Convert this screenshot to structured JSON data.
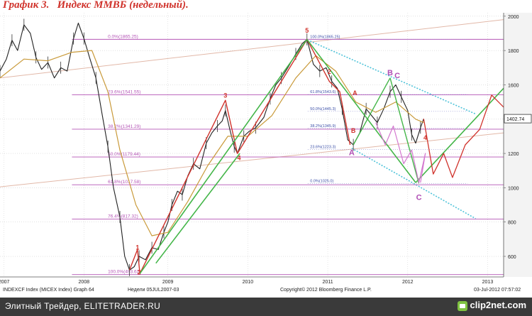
{
  "heading": {
    "label": "График 3.",
    "title": "Индекс ММВБ (недельный)."
  },
  "footer": {
    "caption": "Элитный Трейдер, ELITETRADER.RU",
    "logo": "clip2net.com"
  },
  "chart_data": {
    "type": "line",
    "title": "Индекс ММВБ (недельный).",
    "xlim": [
      2007.0,
      2013.3
    ],
    "ylim": [
      480,
      2020
    ],
    "yticks": [
      600,
      800,
      1000,
      1200,
      1400,
      1600,
      1800,
      2000
    ],
    "xticks": [
      {
        "label": "2007",
        "x": 2007.05
      },
      {
        "label": "2008",
        "x": 2008.05
      },
      {
        "label": "2009",
        "x": 2009.1
      },
      {
        "label": "2010",
        "x": 2010.1
      },
      {
        "label": "2011",
        "x": 2011.1
      },
      {
        "label": "2012",
        "x": 2012.1
      },
      {
        "label": "2013",
        "x": 2013.1
      }
    ],
    "last_price": {
      "value": 1402.74,
      "label": "1402.74"
    },
    "series": [
      {
        "name": "price",
        "color": "#222222",
        "points": [
          [
            2007.0,
            1680
          ],
          [
            2007.08,
            1750
          ],
          [
            2007.15,
            1860
          ],
          [
            2007.22,
            1800
          ],
          [
            2007.3,
            1950
          ],
          [
            2007.38,
            1900
          ],
          [
            2007.45,
            1760
          ],
          [
            2007.52,
            1690
          ],
          [
            2007.6,
            1730
          ],
          [
            2007.68,
            1640
          ],
          [
            2007.76,
            1700
          ],
          [
            2007.84,
            1680
          ],
          [
            2007.92,
            1870
          ],
          [
            2007.98,
            1960
          ],
          [
            2008.05,
            1870
          ],
          [
            2008.12,
            1760
          ],
          [
            2008.2,
            1640
          ],
          [
            2008.28,
            1420
          ],
          [
            2008.35,
            1240
          ],
          [
            2008.42,
            1000
          ],
          [
            2008.5,
            830
          ],
          [
            2008.56,
            600
          ],
          [
            2008.62,
            520
          ],
          [
            2008.68,
            540
          ],
          [
            2008.74,
            600
          ],
          [
            2008.82,
            580
          ],
          [
            2008.9,
            650
          ],
          [
            2008.98,
            640
          ],
          [
            2009.05,
            740
          ],
          [
            2009.1,
            800
          ],
          [
            2009.15,
            900
          ],
          [
            2009.22,
            980
          ],
          [
            2009.28,
            960
          ],
          [
            2009.35,
            1070
          ],
          [
            2009.42,
            1140
          ],
          [
            2009.5,
            1110
          ],
          [
            2009.58,
            1260
          ],
          [
            2009.65,
            1320
          ],
          [
            2009.72,
            1360
          ],
          [
            2009.78,
            1390
          ],
          [
            2009.82,
            1450
          ],
          [
            2009.88,
            1330
          ],
          [
            2009.93,
            1240
          ],
          [
            2009.97,
            1200
          ],
          [
            2010.05,
            1300
          ],
          [
            2010.12,
            1330
          ],
          [
            2010.2,
            1350
          ],
          [
            2010.3,
            1410
          ],
          [
            2010.38,
            1520
          ],
          [
            2010.45,
            1600
          ],
          [
            2010.52,
            1640
          ],
          [
            2010.6,
            1700
          ],
          [
            2010.7,
            1780
          ],
          [
            2010.78,
            1840
          ],
          [
            2010.84,
            1865
          ],
          [
            2010.92,
            1720
          ],
          [
            2011.0,
            1680
          ],
          [
            2011.08,
            1700
          ],
          [
            2011.15,
            1620
          ],
          [
            2011.22,
            1580
          ],
          [
            2011.28,
            1460
          ],
          [
            2011.35,
            1280
          ],
          [
            2011.42,
            1250
          ],
          [
            2011.5,
            1320
          ],
          [
            2011.58,
            1460
          ],
          [
            2011.65,
            1420
          ],
          [
            2011.72,
            1380
          ],
          [
            2011.8,
            1460
          ],
          [
            2011.88,
            1560
          ],
          [
            2011.95,
            1600
          ],
          [
            2012.02,
            1530
          ],
          [
            2012.1,
            1450
          ],
          [
            2012.15,
            1310
          ],
          [
            2012.2,
            1260
          ],
          [
            2012.26,
            1350
          ],
          [
            2012.3,
            1402
          ]
        ]
      },
      {
        "name": "moving-average",
        "color": "#c99a3a",
        "points": [
          [
            2007.0,
            1640
          ],
          [
            2007.3,
            1750
          ],
          [
            2007.6,
            1740
          ],
          [
            2007.9,
            1790
          ],
          [
            2008.15,
            1800
          ],
          [
            2008.35,
            1560
          ],
          [
            2008.5,
            1220
          ],
          [
            2008.7,
            900
          ],
          [
            2008.9,
            720
          ],
          [
            2009.1,
            740
          ],
          [
            2009.35,
            920
          ],
          [
            2009.6,
            1130
          ],
          [
            2009.85,
            1300
          ],
          [
            2010.1,
            1300
          ],
          [
            2010.4,
            1420
          ],
          [
            2010.7,
            1640
          ],
          [
            2010.95,
            1770
          ],
          [
            2011.2,
            1680
          ],
          [
            2011.45,
            1500
          ],
          [
            2011.7,
            1440
          ],
          [
            2011.95,
            1500
          ],
          [
            2012.2,
            1400
          ],
          [
            2012.3,
            1380
          ]
        ]
      }
    ],
    "fibonacci_levels": [
      {
        "label": "0.0%(1865.25)",
        "y": 1865.25
      },
      {
        "label": "23.6%(1541.55)",
        "y": 1541.55
      },
      {
        "label": "38.2%(1341.29)",
        "y": 1341.29
      },
      {
        "label": "50.0%(1179.44)",
        "y": 1179.44
      },
      {
        "label": "61.8%(1017.58)",
        "y": 1017.58
      },
      {
        "label": "76.4%(817.32)",
        "y": 817.32
      },
      {
        "label": "100.0%(493.62)",
        "y": 493.62
      }
    ],
    "inner_fibonacci_levels": [
      {
        "label": "100.0%(1865.25)",
        "y": 1865.25
      },
      {
        "label": "61.8%(1543.6)",
        "y": 1543.6
      },
      {
        "label": "50.0%(1445.3)",
        "y": 1445.3
      },
      {
        "label": "38.2%(1345.9)",
        "y": 1345.9
      },
      {
        "label": "23.6%(1223.3)",
        "y": 1223.3
      },
      {
        "label": "0.0%(1025.0)",
        "y": 1025.0
      }
    ],
    "wave_markings": [
      {
        "label": "1",
        "x": 2008.72,
        "y": 640,
        "color": "#d0332c"
      },
      {
        "label": "2",
        "x": 2008.74,
        "y": 495,
        "color": "#d0332c"
      },
      {
        "label": "3",
        "x": 2009.82,
        "y": 1525,
        "color": "#d0332c"
      },
      {
        "label": "4",
        "x": 2009.99,
        "y": 1160,
        "color": "#d0332c"
      },
      {
        "label": "5",
        "x": 2010.84,
        "y": 1905,
        "color": "#d0332c"
      },
      {
        "label": "2",
        "x": 2011.12,
        "y": 1665,
        "color": "#d0332c"
      },
      {
        "label": "A",
        "x": 2011.44,
        "y": 1540,
        "color": "#d0332c"
      },
      {
        "label": "B",
        "x": 2011.42,
        "y": 1320,
        "color": "#d0332c"
      },
      {
        "label": "A",
        "x": 2011.4,
        "y": 1190,
        "color": "#b04fb5"
      },
      {
        "label": "B",
        "x": 2011.88,
        "y": 1655,
        "color": "#b04fb5"
      },
      {
        "label": "C",
        "x": 2011.97,
        "y": 1640,
        "color": "#b04fb5"
      },
      {
        "label": "C",
        "x": 2012.24,
        "y": 930,
        "color": "#b04fb5"
      },
      {
        "label": "4",
        "x": 2012.32,
        "y": 1280,
        "color": "#d0332c"
      }
    ],
    "bottom_info": {
      "left": "INDEXCF Index (MICEX Index) Graph 64",
      "middle": "Недели 05JUL2007-03",
      "center": "Copyright© 2012 Bloomberg Finance L.P.",
      "right": "03-Jul-2012 07:57:02"
    }
  }
}
